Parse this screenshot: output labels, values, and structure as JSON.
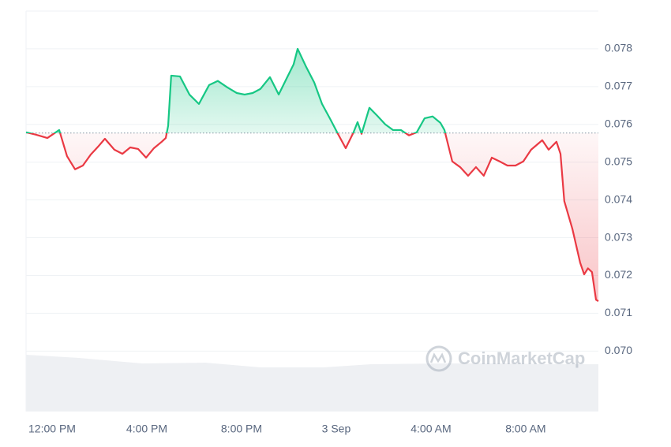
{
  "chart_data": {
    "type": "line",
    "x": [
      10.9,
      11.3,
      11.8,
      12.3,
      12.63,
      12.97,
      13.3,
      13.63,
      13.97,
      14.23,
      14.63,
      14.97,
      15.3,
      15.63,
      15.97,
      16.3,
      16.63,
      16.8,
      16.9,
      17.03,
      17.4,
      17.8,
      18.2,
      18.63,
      19.0,
      19.4,
      19.8,
      20.13,
      20.47,
      20.8,
      21.2,
      21.57,
      21.9,
      22.2,
      22.37,
      22.73,
      23.07,
      23.4,
      23.73,
      24.07,
      24.4,
      24.73,
      24.9,
      25.07,
      25.4,
      25.73,
      26.07,
      26.4,
      26.73,
      27.07,
      27.4,
      27.73,
      28.07,
      28.4,
      28.57,
      28.9,
      29.23,
      29.57,
      29.9,
      30.23,
      30.57,
      30.9,
      31.23,
      31.57,
      31.9,
      32.23,
      32.7,
      32.97,
      33.3,
      33.47,
      33.63,
      33.97,
      34.3,
      34.47,
      34.63,
      34.8,
      34.97,
      35.07
    ],
    "values": [
      0.07579,
      0.07573,
      0.07564,
      0.07585,
      0.07516,
      0.07481,
      0.07491,
      0.0752,
      0.07543,
      0.07562,
      0.07533,
      0.07522,
      0.07539,
      0.07535,
      0.07512,
      0.07537,
      0.07554,
      0.07564,
      0.07596,
      0.07729,
      0.07727,
      0.07679,
      0.07654,
      0.07704,
      0.07715,
      0.07698,
      0.07683,
      0.07679,
      0.07683,
      0.07694,
      0.07725,
      0.07679,
      0.07721,
      0.07759,
      0.078,
      0.07752,
      0.07711,
      0.07654,
      0.07616,
      0.07575,
      0.07537,
      0.07579,
      0.07606,
      0.07575,
      0.07644,
      0.07623,
      0.076,
      0.07585,
      0.07585,
      0.07571,
      0.07579,
      0.07616,
      0.07621,
      0.07604,
      0.07585,
      0.07502,
      0.07487,
      0.07464,
      0.07487,
      0.07464,
      0.07512,
      0.07502,
      0.07491,
      0.07491,
      0.07502,
      0.07533,
      0.07558,
      0.07533,
      0.07554,
      0.07522,
      0.07397,
      0.07324,
      0.07234,
      0.07203,
      0.07219,
      0.07209,
      0.07136,
      0.07132
    ],
    "baseline": 0.07577,
    "up_color": "#16c784",
    "down_color": "#ea3943",
    "xlim": [
      10.9,
      35.07
    ],
    "xticks": [
      {
        "value": 12,
        "label": "12:00 PM"
      },
      {
        "value": 16,
        "label": "4:00 PM"
      },
      {
        "value": 20,
        "label": "8:00 PM"
      },
      {
        "value": 24,
        "label": "3 Sep"
      },
      {
        "value": 28,
        "label": "4:00 AM"
      },
      {
        "value": 32,
        "label": "8:00 AM"
      }
    ],
    "ylim": [
      0.0684,
      0.079
    ],
    "yticks": [
      {
        "value": 0.07,
        "label": "0.070"
      },
      0.071,
      0.072,
      0.073,
      0.074,
      0.075,
      0.076,
      0.077,
      0.078
    ],
    "grid": true,
    "watermark": "CoinMarketCap"
  }
}
